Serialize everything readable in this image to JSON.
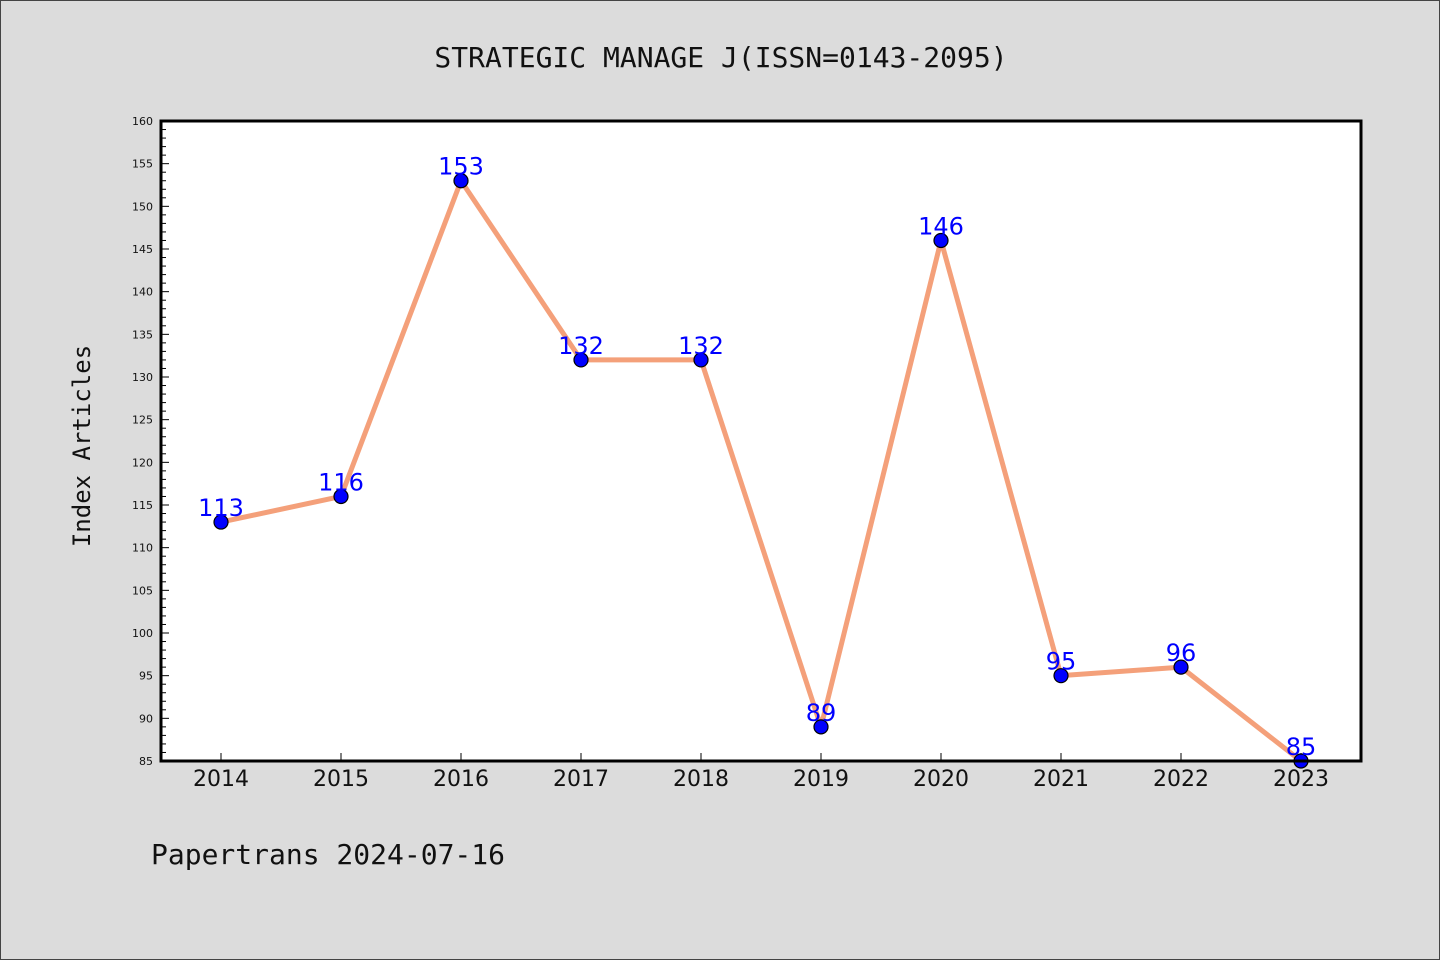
{
  "footer": "Papertrans 2024-07-16",
  "colors": {
    "background": "#dcdcdc",
    "plot_background": "#ffffff",
    "line": "#f4a07a",
    "marker": "#0000ff",
    "label": "#0000ff"
  },
  "chart_data": {
    "type": "line",
    "title": "STRATEGIC MANAGE J(ISSN=0143-2095)",
    "xlabel": "",
    "ylabel": "Index Articles",
    "categories": [
      "2014",
      "2015",
      "2016",
      "2017",
      "2018",
      "2019",
      "2020",
      "2021",
      "2022",
      "2023"
    ],
    "values": [
      113,
      116,
      153,
      132,
      132,
      89,
      146,
      95,
      96,
      85
    ],
    "data_labels": [
      "113",
      "116",
      "153",
      "132",
      "132",
      "89",
      "146",
      "95",
      "96",
      "85"
    ],
    "ylim": [
      85,
      160
    ],
    "yticks": [
      "85",
      "90",
      "95",
      "100",
      "105",
      "110",
      "115",
      "120",
      "125",
      "130",
      "135",
      "140",
      "145",
      "150",
      "155",
      "160"
    ],
    "grid": false,
    "legend": "none"
  }
}
